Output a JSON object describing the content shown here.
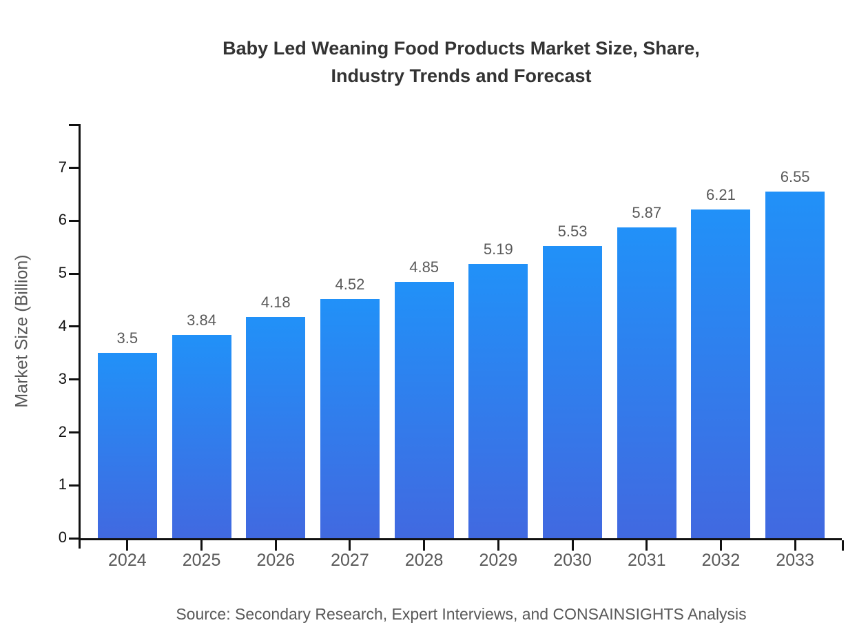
{
  "chart_data": {
    "type": "bar",
    "title": "Baby Led Weaning Food Products Market Size, Share, Industry Trends and Forecast",
    "title_lines": [
      "Baby Led Weaning Food Products Market Size, Share,",
      "Industry Trends and Forecast"
    ],
    "xlabel": "",
    "ylabel": "Market Size (Billion)",
    "categories": [
      "2024",
      "2025",
      "2026",
      "2027",
      "2028",
      "2029",
      "2030",
      "2031",
      "2032",
      "2033"
    ],
    "values": [
      3.5,
      3.84,
      4.18,
      4.52,
      4.85,
      5.19,
      5.53,
      5.87,
      6.21,
      6.55
    ],
    "value_labels": [
      "3.5",
      "3.84",
      "4.18",
      "4.52",
      "4.85",
      "5.19",
      "5.53",
      "5.87",
      "6.21",
      "6.55"
    ],
    "yticks": [
      0,
      1,
      2,
      3,
      4,
      5,
      6,
      7
    ],
    "ylim": [
      0,
      7.83
    ],
    "grid": false,
    "legend": false,
    "colors": {
      "bar_gradient_top": "#2191f8",
      "bar_gradient_bottom": "#4169e0",
      "axis": "#111111",
      "title_text": "#333333",
      "muted_text": "#595959"
    }
  },
  "footer": {
    "source": "Source: Secondary Research, Expert Interviews, and CONSAINSIGHTS Analysis"
  }
}
